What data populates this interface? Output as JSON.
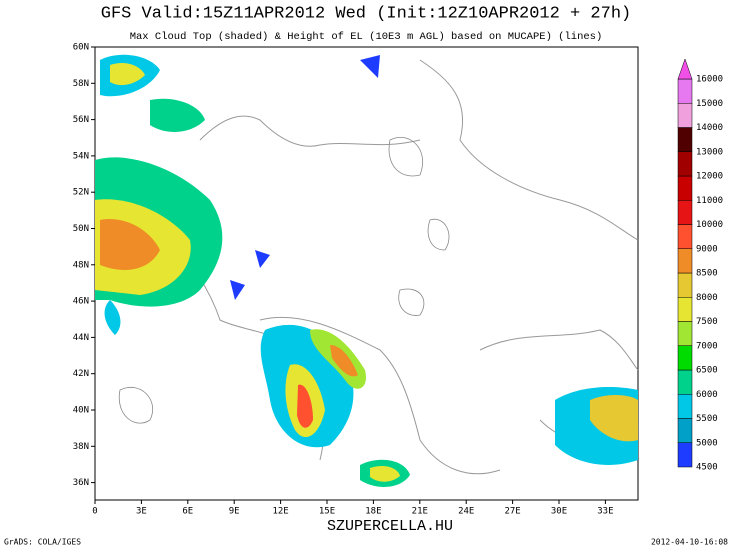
{
  "title": "GFS Valid:15Z11APR2012 Wed (Init:12Z10APR2012 + 27h)",
  "subtitle": "Max Cloud Top (shaded) & Height of EL (10E3 m AGL) based on MUCAPE) (lines)",
  "lat_labels": [
    "60N",
    "58N",
    "56N",
    "54N",
    "52N",
    "50N",
    "48N",
    "46N",
    "44N",
    "42N",
    "40N",
    "38N",
    "36N"
  ],
  "lon_labels": [
    "0",
    "3E",
    "6E",
    "9E",
    "12E",
    "15E",
    "18E",
    "21E",
    "24E",
    "27E",
    "30E",
    "33E"
  ],
  "colorbar": {
    "levels": [
      4500,
      5000,
      5500,
      6000,
      6500,
      7000,
      7500,
      8000,
      8500,
      9000,
      10000,
      11000,
      12000,
      13000,
      14000,
      15000,
      16000
    ],
    "colors": [
      "#1e3cff",
      "#00a0c8",
      "#00c8e6",
      "#00d28c",
      "#00dc00",
      "#a0e632",
      "#e6e632",
      "#e6c832",
      "#f08c28",
      "#ff5030",
      "#e61414",
      "#c80000",
      "#a00000",
      "#500000",
      "#f0a0dc",
      "#e678f0",
      "#f050e6"
    ]
  },
  "watermark": "SZUPERCELLA.HU",
  "footer_left": "GrADS: COLA/IGES",
  "footer_right": "2012-04-10-16:08"
}
